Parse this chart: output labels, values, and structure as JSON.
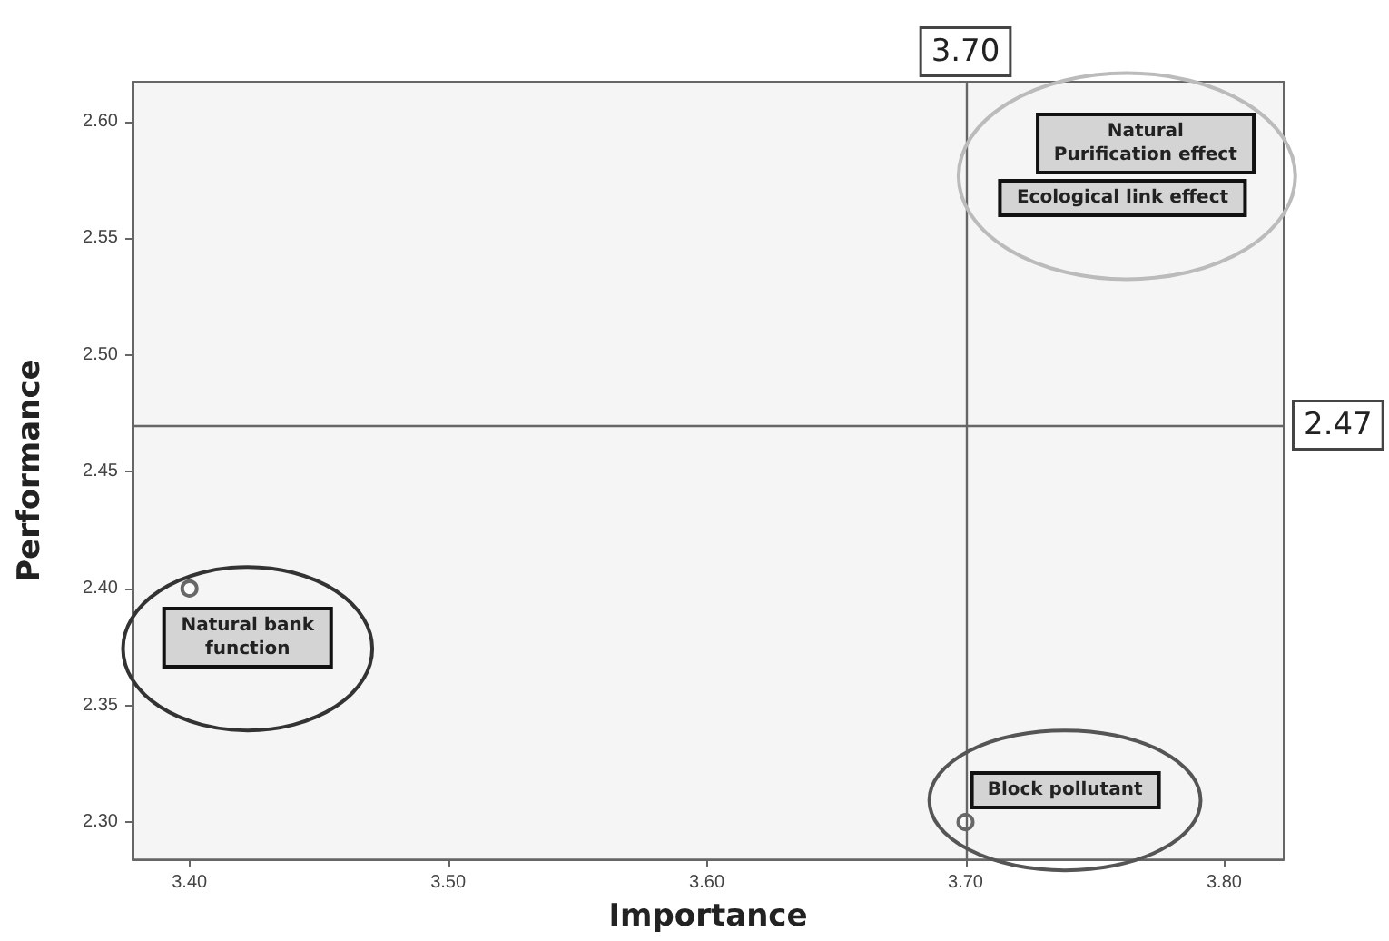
{
  "chart_data": {
    "type": "scatter",
    "xlabel": "Importance",
    "ylabel": "Performance",
    "x": [
      3.4,
      3.7
    ],
    "values": [
      2.4,
      2.3
    ],
    "color": "#444444",
    "marker": "circle",
    "xlim": [
      3.378,
      3.823
    ],
    "xticks": [
      {
        "value": 3.4,
        "label": "3.40"
      },
      {
        "value": 3.5,
        "label": "3.50"
      },
      {
        "value": 3.6,
        "label": "3.60"
      },
      {
        "value": 3.7,
        "label": "3.70"
      },
      {
        "value": 3.8,
        "label": "3.80"
      }
    ],
    "ylim": [
      2.284,
      2.617
    ],
    "yticks": [
      {
        "value": 2.3,
        "label": "2.30"
      },
      {
        "value": 2.35,
        "label": "2.35"
      },
      {
        "value": 2.4,
        "label": "2.40"
      },
      {
        "value": 2.45,
        "label": "2.45"
      },
      {
        "value": 2.5,
        "label": "2.50"
      },
      {
        "value": 2.55,
        "label": "2.55"
      },
      {
        "value": 2.6,
        "label": "2.60"
      }
    ],
    "ref_lines": [
      {
        "axis": "x",
        "value": 3.7,
        "label": "3.70"
      },
      {
        "axis": "y",
        "value": 2.47,
        "label": "2.47"
      }
    ],
    "annotations": [
      "Natural\nPurification effect",
      "Ecological link effect",
      "Natural bank\nfunction",
      "Block pollutant"
    ]
  }
}
